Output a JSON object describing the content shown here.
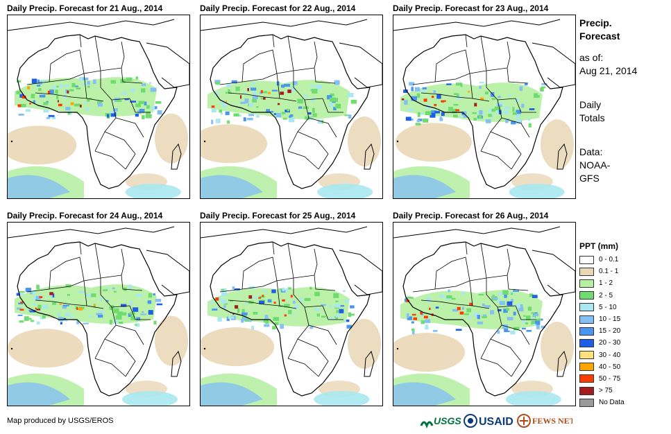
{
  "panels": [
    {
      "title": "Daily Precip. Forecast for 21 Aug., 2014",
      "day": 21
    },
    {
      "title": "Daily Precip. Forecast for 22 Aug., 2014",
      "day": 22
    },
    {
      "title": "Daily Precip. Forecast for 23 Aug., 2014",
      "day": 23
    },
    {
      "title": "Daily Precip. Forecast for 24 Aug., 2014",
      "day": 24
    },
    {
      "title": "Daily Precip. Forecast for 25 Aug., 2014",
      "day": 25
    },
    {
      "title": "Daily Precip. Forecast for 26 Aug., 2014",
      "day": 26
    }
  ],
  "sidebar": {
    "title_line1": "Precip.",
    "title_line2": "Forecast",
    "asof_label": "as of:",
    "asof_date": "Aug 21, 2014",
    "totals_line1": "Daily",
    "totals_line2": "Totals",
    "source_label": "Data:",
    "source_line1": "NOAA-",
    "source_line2": "GFS"
  },
  "legend": {
    "title": "PPT (mm)",
    "items": [
      {
        "label": "0 - 0.1",
        "color": "#ffffff"
      },
      {
        "label": "0.1 - 1",
        "color": "#ead7b5"
      },
      {
        "label": "1 - 2",
        "color": "#b7f0a4"
      },
      {
        "label": "2 - 5",
        "color": "#6fdc6f"
      },
      {
        "label": "5 - 10",
        "color": "#a9e8f0"
      },
      {
        "label": "10 - 15",
        "color": "#84c0f2"
      },
      {
        "label": "15 - 20",
        "color": "#4a95ef"
      },
      {
        "label": "20 - 30",
        "color": "#1f5ee6"
      },
      {
        "label": "30 - 40",
        "color": "#ffe27a"
      },
      {
        "label": "40 - 50",
        "color": "#ffa500"
      },
      {
        "label": "50 - 75",
        "color": "#ff3c00"
      },
      {
        "label": "> 75",
        "color": "#a61b1b"
      },
      {
        "label": "No Data",
        "color": "#9a9a9a"
      }
    ]
  },
  "footer": {
    "credit": "Map produced by USGS/EROS"
  },
  "logos": {
    "usgs": "USGS",
    "usaid": "USAID",
    "fewsnet": "FEWS NET"
  }
}
